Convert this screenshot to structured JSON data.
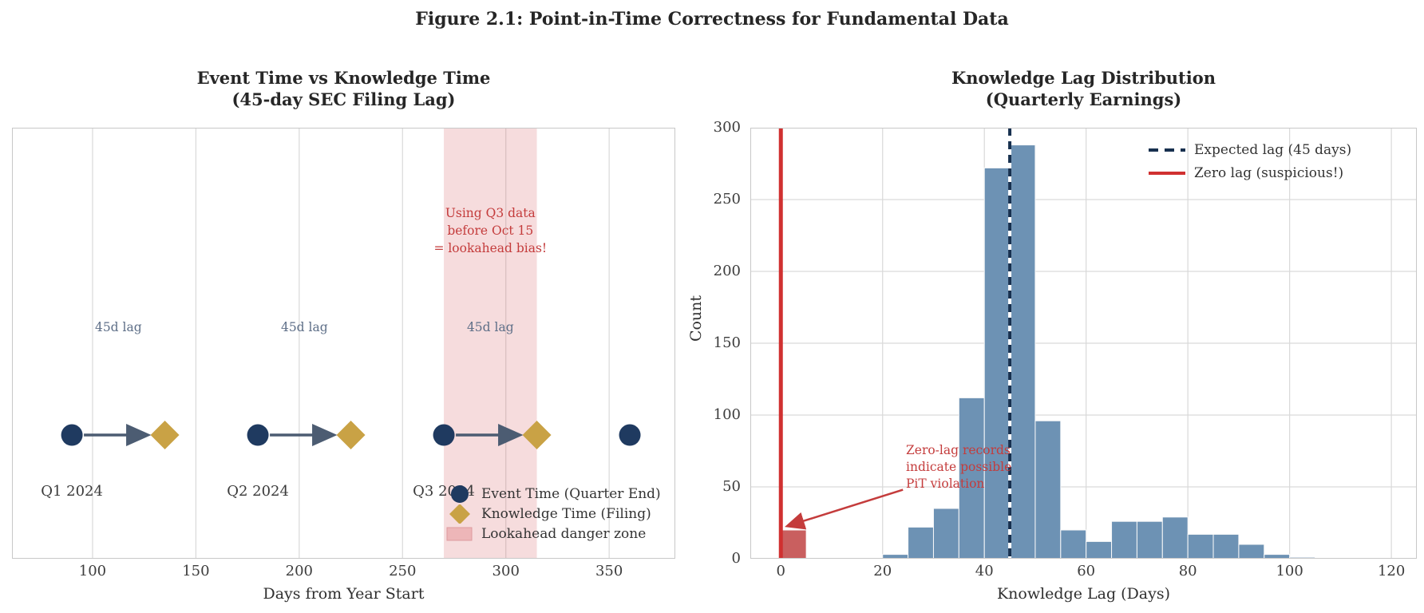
{
  "figure_title": "Figure 2.1: Point-in-Time Correctness for Fundamental Data",
  "colors": {
    "navy": "#1f3a60",
    "gold": "#c9a245",
    "arrow": "#4c5c72",
    "lag_text": "#5d6e87",
    "danger_fill": "rgba(214,96,100,0.22)",
    "danger_edge": "#dd9a9e",
    "red_text": "#c43c3c",
    "red_line": "#d03030",
    "red_bar": "#c95f5f",
    "blue_bar": "#6d92b4",
    "navy_line": "#17304f",
    "grid": "#d9d9d9",
    "spine": "#c8c8c8"
  },
  "chart_data": [
    {
      "type": "scatter",
      "title": [
        "Event Time vs Knowledge Time",
        "(45-day SEC Filing Lag)"
      ],
      "xlabel": "Days from Year Start",
      "xticks": [
        100,
        150,
        200,
        250,
        300,
        350
      ],
      "xlim": [
        61,
        382
      ],
      "grid": "vertical",
      "marker_row_y_fraction": 0.713,
      "event_time_days": [
        90,
        180,
        270,
        360
      ],
      "knowledge_time_days": [
        135,
        225,
        315
      ],
      "lag_arrows": [
        {
          "from": 90,
          "to": 135,
          "label": "45d lag"
        },
        {
          "from": 180,
          "to": 225,
          "label": "45d lag"
        },
        {
          "from": 270,
          "to": 315,
          "label": "45d lag"
        }
      ],
      "quarter_labels": [
        {
          "day": 90,
          "label": "Q1 2024"
        },
        {
          "day": 180,
          "label": "Q2 2024"
        },
        {
          "day": 270,
          "label": "Q3 2024"
        }
      ],
      "danger_zone": {
        "from_day": 270,
        "to_day": 315
      },
      "zone_annotation": {
        "lines": [
          "Using Q3 data",
          "before Oct 15",
          "= lookahead bias!"
        ],
        "center_day": 292.5
      },
      "legend": [
        {
          "marker": "circle",
          "label": "Event Time (Quarter End)"
        },
        {
          "marker": "diamond",
          "label": "Knowledge Time (Filing)"
        },
        {
          "marker": "patch",
          "label": "Lookahead danger zone"
        }
      ]
    },
    {
      "type": "bar",
      "title": [
        "Knowledge Lag Distribution",
        "(Quarterly Earnings)"
      ],
      "xlabel": "Knowledge Lag (Days)",
      "ylabel": "Count",
      "xticks": [
        0,
        20,
        40,
        60,
        80,
        100,
        120
      ],
      "yticks": [
        0,
        50,
        100,
        150,
        200,
        250,
        300
      ],
      "xlim": [
        -6,
        125
      ],
      "ylim": [
        0,
        300
      ],
      "grid": "both",
      "bins": [
        {
          "x0": 0,
          "x1": 5,
          "count": 20,
          "flag": "red"
        },
        {
          "x0": 20,
          "x1": 25,
          "count": 3
        },
        {
          "x0": 25,
          "x1": 30,
          "count": 22
        },
        {
          "x0": 30,
          "x1": 35,
          "count": 35
        },
        {
          "x0": 35,
          "x1": 40,
          "count": 112
        },
        {
          "x0": 40,
          "x1": 45,
          "count": 272
        },
        {
          "x0": 45,
          "x1": 50,
          "count": 288
        },
        {
          "x0": 50,
          "x1": 55,
          "count": 96
        },
        {
          "x0": 55,
          "x1": 60,
          "count": 20
        },
        {
          "x0": 60,
          "x1": 65,
          "count": 12
        },
        {
          "x0": 65,
          "x1": 70,
          "count": 26
        },
        {
          "x0": 70,
          "x1": 75,
          "count": 26
        },
        {
          "x0": 75,
          "x1": 80,
          "count": 29
        },
        {
          "x0": 80,
          "x1": 85,
          "count": 17
        },
        {
          "x0": 85,
          "x1": 90,
          "count": 17
        },
        {
          "x0": 90,
          "x1": 95,
          "count": 10
        },
        {
          "x0": 95,
          "x1": 100,
          "count": 3
        },
        {
          "x0": 100,
          "x1": 105,
          "count": 1
        }
      ],
      "vlines": [
        {
          "x": 45,
          "style": "dashed",
          "color_key": "navy_line",
          "label": "Expected lag (45 days)"
        },
        {
          "x": 0,
          "style": "solid",
          "color_key": "red_line",
          "label": "Zero lag (suspicious!)"
        }
      ],
      "annotation": {
        "lines": [
          "Zero-lag records",
          "indicate possible",
          "PiT violation"
        ],
        "arrow_from_x": 24,
        "arrow_from_count": 48,
        "arrow_to_x": 1.5,
        "arrow_to_count": 23
      }
    }
  ]
}
